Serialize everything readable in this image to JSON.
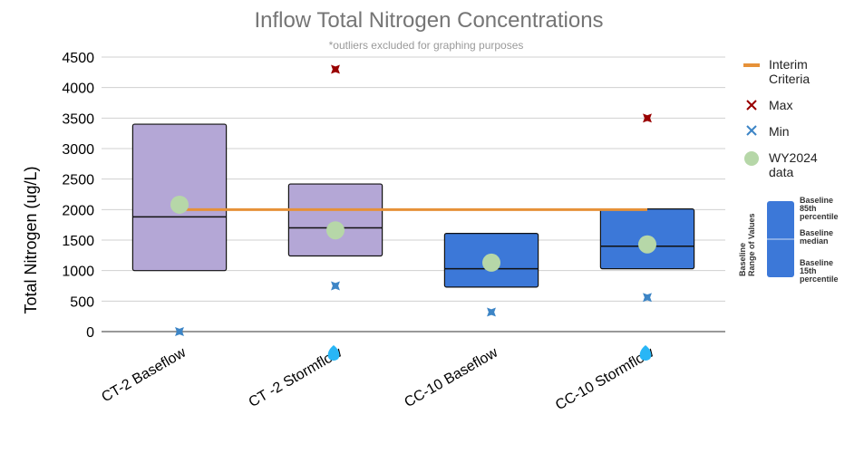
{
  "chart_data": {
    "type": "box",
    "title": "Inflow Total Nitrogen Concentrations",
    "subtitle": "*outliers excluded for graphing purposes",
    "ylabel": "Total Nitrogen (ug/L)",
    "xlabel": "",
    "ylim": [
      0,
      4500
    ],
    "yticks": [
      0,
      500,
      1000,
      1500,
      2000,
      2500,
      3000,
      3500,
      4000,
      4500
    ],
    "grid": true,
    "legend_position": "right",
    "categories": [
      "CT-2 Baseflow",
      "CT -2 Stormflow",
      "CC-10 Baseflow",
      "CC-10 Stormflow"
    ],
    "stormflow_marker": [
      false,
      true,
      false,
      true
    ],
    "boxes": [
      {
        "category": "CT-2 Baseflow",
        "p15": 1000,
        "median": 1880,
        "p85": 3400,
        "color": "#b4a7d6"
      },
      {
        "category": "CT -2 Stormflow",
        "p15": 1240,
        "median": 1700,
        "p85": 2420,
        "color": "#b4a7d6"
      },
      {
        "category": "CC-10 Baseflow",
        "p15": 730,
        "median": 1030,
        "p85": 1610,
        "color": "#3c78d8"
      },
      {
        "category": "CC-10 Stormflow",
        "p15": 1030,
        "median": 1400,
        "p85": 2010,
        "color": "#3c78d8"
      }
    ],
    "series": [
      {
        "name": "Interim Criteria",
        "kind": "line",
        "color": "#e69138",
        "value": 2000,
        "x_from": 0,
        "x_to": 3
      },
      {
        "name": "Max",
        "kind": "marker",
        "color": "#990000",
        "values": [
          null,
          4300,
          null,
          3500
        ]
      },
      {
        "name": "Min",
        "kind": "marker",
        "color": "#3d85c6",
        "values": [
          0,
          750,
          320,
          560
        ]
      },
      {
        "name": "WY2024 data",
        "kind": "point",
        "color": "#b6d7a8",
        "values": [
          2080,
          1660,
          1130,
          1430
        ]
      }
    ]
  },
  "legend": {
    "items": [
      {
        "line1": "Interim",
        "line2": "Criteria"
      },
      {
        "line1": "Max",
        "line2": ""
      },
      {
        "line1": "Min",
        "line2": ""
      },
      {
        "line1": "WY2024",
        "line2": "data"
      }
    ]
  },
  "key": {
    "side_label_1": "Baseline",
    "side_label_2": "Range of Values",
    "top_label_1": "Baseline",
    "top_label_2": "85th",
    "top_label_3": "percentile",
    "mid_label_1": "Baseline",
    "mid_label_2": "median",
    "bot_label_1": "Baseline",
    "bot_label_2": "15th",
    "bot_label_3": "percentile",
    "color": "#3c78d8"
  },
  "colors": {
    "stormflow_drop": "#29b6f6",
    "grid": "#d0d0d0"
  }
}
